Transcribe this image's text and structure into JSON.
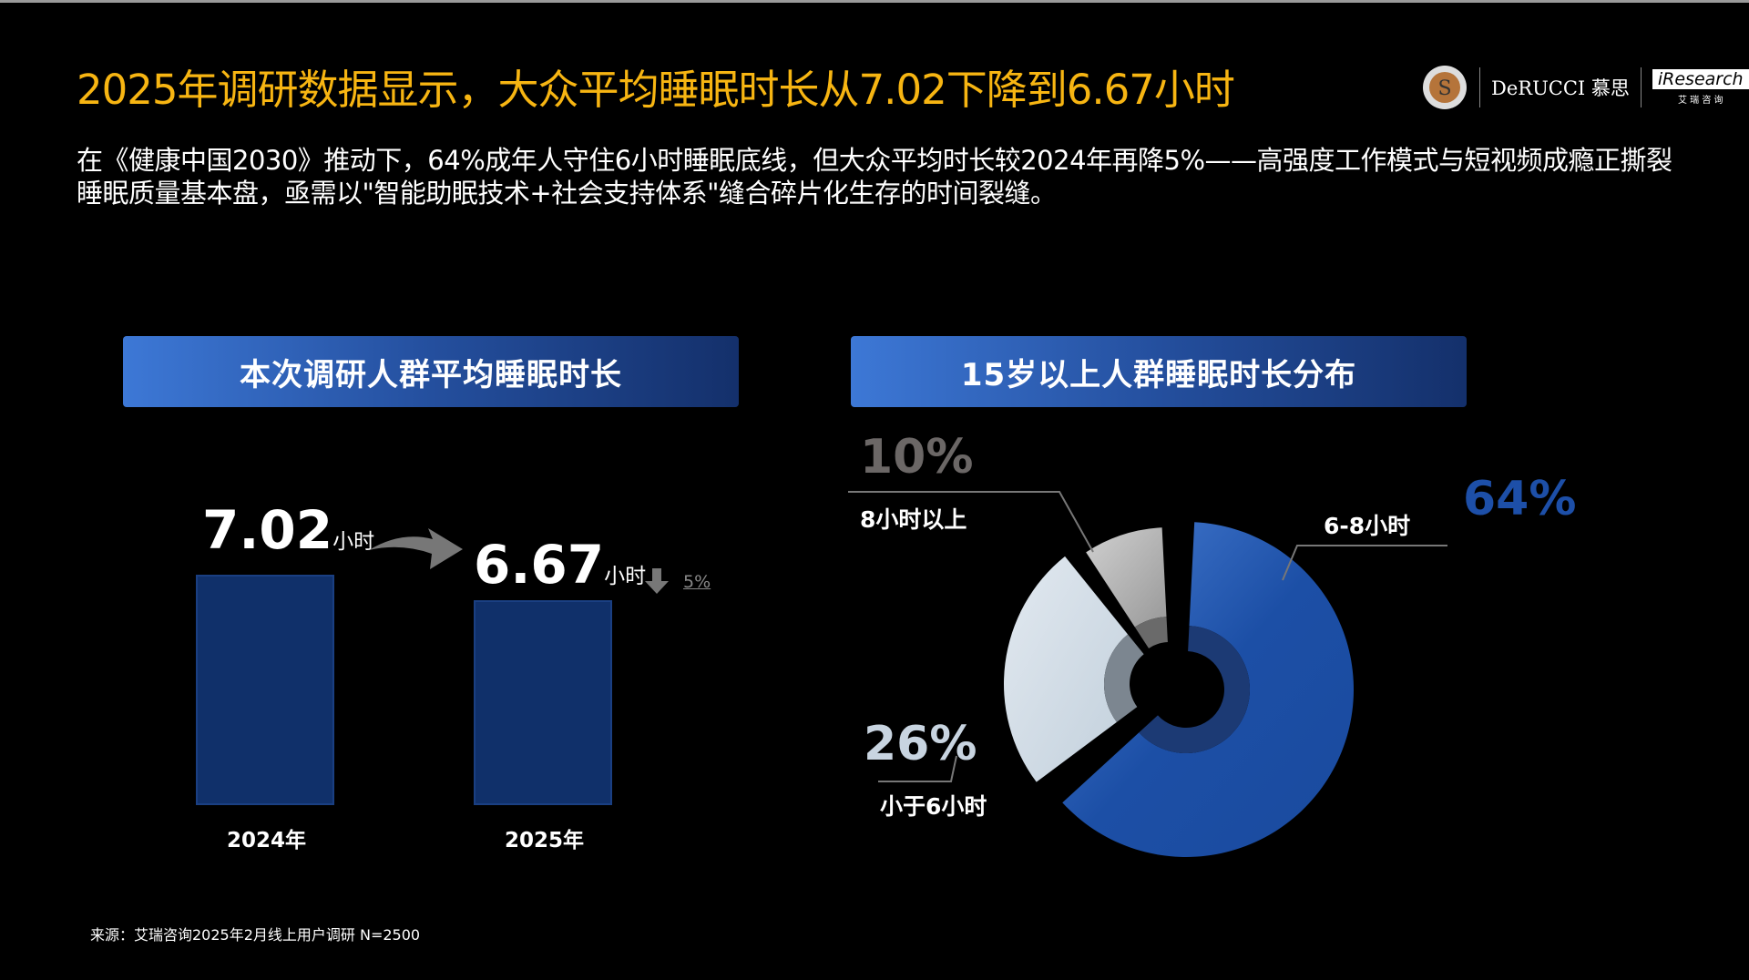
{
  "title": "2025年调研数据显示，大众平均睡眠时长从7.02下降到6.67小时",
  "subtitle": "在《健康中国2030》推动下，64%成年人守住6小时睡眠底线，但大众平均时长较2024年再降5%——高强度工作模式与短视频成瘾正撕裂睡眠质量基本盘，亟需以\"智能助眠技术+社会支持体系\"缝合碎片化生存的时间裂缝。",
  "logos": {
    "derucci": "DeRUCCI 慕思",
    "iresearch": "iResearch",
    "iresearch_cn": "艾 瑞 咨 询"
  },
  "colors": {
    "title": "#f7b512",
    "bar": "#10306a",
    "blue": "#2457b0",
    "light": "#d4dee7",
    "gray": "#b4b4b4"
  },
  "chart_data": [
    {
      "type": "bar",
      "title": "本次调研人群平均睡眠时长",
      "categories": [
        "2024年",
        "2025年"
      ],
      "values": [
        7.02,
        6.67
      ],
      "value_labels": [
        "7.02",
        "6.67"
      ],
      "unit": "小时",
      "change_label": "5%",
      "change_direction": "down"
    },
    {
      "type": "pie",
      "title": "15岁以上人群睡眠时长分布",
      "slices": [
        {
          "label": "6-8小时",
          "value": 64,
          "value_label": "64%",
          "color": "#2457b0"
        },
        {
          "label": "小于6小时",
          "value": 26,
          "value_label": "26%",
          "color": "#d4dee7"
        },
        {
          "label": "8小时以上",
          "value": 10,
          "value_label": "10%",
          "color": "#b4b4b4"
        }
      ]
    }
  ],
  "footer": "来源：艾瑞咨询2025年2月线上用户调研 N=2500"
}
